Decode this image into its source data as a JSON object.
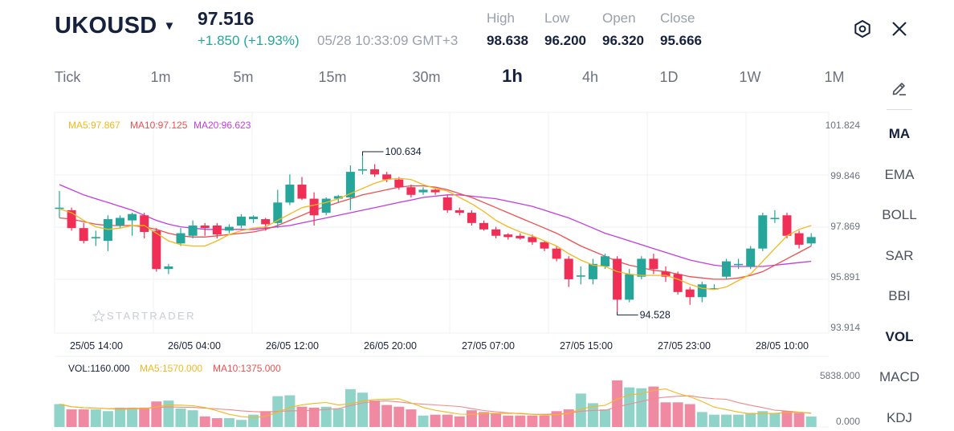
{
  "header": {
    "symbol": "UKOUSD",
    "price": "97.516",
    "change": "+1.850 (+1.93%)",
    "timestamp": "05/28 10:33:09 GMT+3",
    "stats": [
      {
        "label": "High",
        "value": "98.638"
      },
      {
        "label": "Low",
        "value": "96.200"
      },
      {
        "label": "Open",
        "value": "96.320"
      },
      {
        "label": "Close",
        "value": "95.666"
      }
    ],
    "icons": {
      "settings": "gear-icon",
      "close": "close-icon",
      "dropdown": "caret-down-icon"
    }
  },
  "timeframes": [
    "Tick",
    "1m",
    "5m",
    "15m",
    "30m",
    "1h",
    "4h",
    "1D",
    "1W",
    "1M"
  ],
  "active_timeframe": "1h",
  "indicators": [
    "MA",
    "EMA",
    "BOLL",
    "SAR",
    "BBI",
    "VOL",
    "MACD",
    "KDJ"
  ],
  "active_indicators": [
    "MA",
    "VOL"
  ],
  "watermark": "STARTRADER",
  "colors": {
    "up": "#26a69a",
    "down": "#ef2f55",
    "ma5": "#f3b81d",
    "ma10": "#ef4f4f",
    "ma20": "#c33ce0",
    "vol_up": "#8fd3c9",
    "vol_down": "#f08aa3"
  },
  "chart_data": {
    "type": "candlestick",
    "price_axis": {
      "labels": [
        "101.824",
        "99.846",
        "97.869",
        "95.891",
        "93.914"
      ],
      "range": [
        93.914,
        101.824
      ]
    },
    "time_labels": [
      "25/05 14:00",
      "26/05 04:00",
      "26/05 12:00",
      "26/05 20:00",
      "27/05 07:00",
      "27/05 15:00",
      "27/05 23:00",
      "28/05 10:00"
    ],
    "legend": {
      "ma5": "MA5:97.867",
      "ma10": "MA10:97.125",
      "ma20": "MA20:96.623"
    },
    "annotations": {
      "high": "100.634",
      "low": "94.528"
    },
    "candles": [
      {
        "o": 98.6,
        "c": 98.6,
        "h": 99.25,
        "l": 98.2
      },
      {
        "o": 98.5,
        "c": 97.8,
        "h": 98.6,
        "l": 97.7
      },
      {
        "o": 97.8,
        "c": 97.3,
        "h": 98.0,
        "l": 97.2
      },
      {
        "o": 97.45,
        "c": 97.45,
        "h": 97.7,
        "l": 97.1
      },
      {
        "o": 97.3,
        "c": 98.15,
        "h": 98.3,
        "l": 96.9
      },
      {
        "o": 97.9,
        "c": 98.2,
        "h": 98.3,
        "l": 97.8
      },
      {
        "o": 98.1,
        "c": 98.35,
        "h": 98.4,
        "l": 97.5
      },
      {
        "o": 98.3,
        "c": 97.65,
        "h": 98.4,
        "l": 97.4
      },
      {
        "o": 97.7,
        "c": 96.2,
        "h": 97.8,
        "l": 96.1
      },
      {
        "o": 96.2,
        "c": 96.3,
        "h": 96.4,
        "l": 96.0
      },
      {
        "o": 97.2,
        "c": 97.6,
        "h": 97.8,
        "l": 97.1
      },
      {
        "o": 97.5,
        "c": 97.9,
        "h": 98.1,
        "l": 97.4
      },
      {
        "o": 97.9,
        "c": 97.8,
        "h": 98.0,
        "l": 97.5
      },
      {
        "o": 97.9,
        "c": 97.55,
        "h": 98.0,
        "l": 97.4
      },
      {
        "o": 97.7,
        "c": 97.85,
        "h": 97.95,
        "l": 97.6
      },
      {
        "o": 97.9,
        "c": 98.25,
        "h": 98.35,
        "l": 97.8
      },
      {
        "o": 98.15,
        "c": 98.25,
        "h": 98.3,
        "l": 98.0
      },
      {
        "o": 98.15,
        "c": 97.95,
        "h": 98.2,
        "l": 97.7
      },
      {
        "o": 98.0,
        "c": 98.8,
        "h": 99.3,
        "l": 97.8
      },
      {
        "o": 98.8,
        "c": 99.5,
        "h": 99.9,
        "l": 98.7
      },
      {
        "o": 99.5,
        "c": 98.95,
        "h": 99.8,
        "l": 98.9
      },
      {
        "o": 98.95,
        "c": 98.3,
        "h": 99.2,
        "l": 97.9
      },
      {
        "o": 98.4,
        "c": 98.95,
        "h": 99.0,
        "l": 98.3
      },
      {
        "o": 98.95,
        "c": 99.05,
        "h": 99.1,
        "l": 98.8
      },
      {
        "o": 99.0,
        "c": 100.0,
        "h": 100.25,
        "l": 98.5
      },
      {
        "o": 100.05,
        "c": 100.1,
        "h": 100.63,
        "l": 99.9
      },
      {
        "o": 100.1,
        "c": 99.9,
        "h": 100.3,
        "l": 99.8
      },
      {
        "o": 99.9,
        "c": 99.7,
        "h": 100.0,
        "l": 99.6
      },
      {
        "o": 99.7,
        "c": 99.4,
        "h": 99.8,
        "l": 99.3
      },
      {
        "o": 99.4,
        "c": 99.1,
        "h": 99.5,
        "l": 99.0
      },
      {
        "o": 99.2,
        "c": 99.3,
        "h": 99.4,
        "l": 99.1
      },
      {
        "o": 99.3,
        "c": 99.2,
        "h": 99.35,
        "l": 99.1
      },
      {
        "o": 99.0,
        "c": 98.5,
        "h": 99.1,
        "l": 98.4
      },
      {
        "o": 98.5,
        "c": 98.4,
        "h": 98.6,
        "l": 98.3
      },
      {
        "o": 98.4,
        "c": 98.0,
        "h": 98.5,
        "l": 97.9
      },
      {
        "o": 98.0,
        "c": 97.75,
        "h": 98.1,
        "l": 97.7
      },
      {
        "o": 97.75,
        "c": 97.5,
        "h": 97.85,
        "l": 97.4
      },
      {
        "o": 97.55,
        "c": 97.45,
        "h": 97.6,
        "l": 97.35
      },
      {
        "o": 97.5,
        "c": 97.4,
        "h": 97.6,
        "l": 97.35
      },
      {
        "o": 97.45,
        "c": 97.25,
        "h": 97.55,
        "l": 97.15
      },
      {
        "o": 97.25,
        "c": 97.0,
        "h": 97.3,
        "l": 96.9
      },
      {
        "o": 97.0,
        "c": 96.6,
        "h": 97.1,
        "l": 96.5
      },
      {
        "o": 96.6,
        "c": 95.8,
        "h": 96.7,
        "l": 95.5
      },
      {
        "o": 95.95,
        "c": 95.95,
        "h": 96.3,
        "l": 95.6
      },
      {
        "o": 95.8,
        "c": 96.4,
        "h": 96.6,
        "l": 95.6
      },
      {
        "o": 96.3,
        "c": 96.7,
        "h": 96.8,
        "l": 96.2
      },
      {
        "o": 96.6,
        "c": 95.0,
        "h": 96.7,
        "l": 94.53
      },
      {
        "o": 95.0,
        "c": 96.0,
        "h": 96.2,
        "l": 94.9
      },
      {
        "o": 95.9,
        "c": 96.6,
        "h": 96.7,
        "l": 95.8
      },
      {
        "o": 96.6,
        "c": 96.2,
        "h": 96.8,
        "l": 96.0
      },
      {
        "o": 96.1,
        "c": 95.9,
        "h": 96.3,
        "l": 95.7
      },
      {
        "o": 96.0,
        "c": 95.3,
        "h": 96.1,
        "l": 95.2
      },
      {
        "o": 95.4,
        "c": 95.1,
        "h": 95.5,
        "l": 94.8
      },
      {
        "o": 95.1,
        "c": 95.6,
        "h": 95.7,
        "l": 94.9
      },
      {
        "o": 95.45,
        "c": 95.45,
        "h": 95.6,
        "l": 95.4
      },
      {
        "o": 95.9,
        "c": 96.5,
        "h": 96.6,
        "l": 95.8
      },
      {
        "o": 96.4,
        "c": 96.4,
        "h": 96.6,
        "l": 96.2
      },
      {
        "o": 96.3,
        "c": 97.0,
        "h": 97.1,
        "l": 96.2
      },
      {
        "o": 97.0,
        "c": 98.3,
        "h": 98.4,
        "l": 96.9
      },
      {
        "o": 98.2,
        "c": 98.2,
        "h": 98.5,
        "l": 98.0
      },
      {
        "o": 98.3,
        "c": 97.5,
        "h": 98.4,
        "l": 97.4
      },
      {
        "o": 97.6,
        "c": 97.15,
        "h": 97.7,
        "l": 97.0
      },
      {
        "o": 97.2,
        "c": 97.45,
        "h": 97.6,
        "l": 97.1
      }
    ],
    "ma5": [
      98.55,
      98.4,
      98.1,
      97.85,
      97.75,
      97.8,
      97.9,
      97.9,
      97.6,
      97.3,
      97.15,
      97.1,
      97.1,
      97.3,
      97.55,
      97.7,
      97.8,
      97.85,
      98.1,
      98.35,
      98.6,
      98.7,
      98.8,
      98.95,
      99.15,
      99.35,
      99.55,
      99.7,
      99.75,
      99.7,
      99.5,
      99.35,
      99.25,
      99.0,
      98.75,
      98.45,
      98.1,
      97.85,
      97.65,
      97.5,
      97.3,
      97.1,
      96.8,
      96.55,
      96.35,
      96.3,
      96.1,
      96.0,
      95.95,
      95.95,
      95.95,
      95.8,
      95.6,
      95.45,
      95.4,
      95.5,
      95.75,
      96.0,
      96.5,
      97.0,
      97.5,
      97.75,
      97.9
    ],
    "ma10": [
      98.2,
      98.15,
      98.05,
      97.95,
      97.9,
      97.9,
      97.9,
      97.85,
      97.75,
      97.6,
      97.5,
      97.45,
      97.45,
      97.5,
      97.55,
      97.6,
      97.65,
      97.75,
      97.9,
      98.1,
      98.3,
      98.5,
      98.65,
      98.8,
      98.95,
      99.1,
      99.2,
      99.3,
      99.4,
      99.45,
      99.45,
      99.4,
      99.3,
      99.15,
      99.0,
      98.8,
      98.6,
      98.4,
      98.2,
      98.0,
      97.8,
      97.6,
      97.35,
      97.1,
      96.9,
      96.7,
      96.5,
      96.35,
      96.25,
      96.15,
      96.1,
      96.0,
      95.9,
      95.85,
      95.8,
      95.8,
      95.85,
      95.95,
      96.1,
      96.35,
      96.6,
      96.85,
      97.1
    ],
    "ma20": [
      99.5,
      99.3,
      99.1,
      98.95,
      98.8,
      98.65,
      98.5,
      98.3,
      98.1,
      97.95,
      97.85,
      97.8,
      97.75,
      97.75,
      97.75,
      97.75,
      97.75,
      97.8,
      97.85,
      97.9,
      98.0,
      98.1,
      98.2,
      98.3,
      98.4,
      98.5,
      98.6,
      98.7,
      98.8,
      98.9,
      99.0,
      99.05,
      99.1,
      99.1,
      99.05,
      99.0,
      98.95,
      98.85,
      98.75,
      98.65,
      98.5,
      98.35,
      98.2,
      98.0,
      97.8,
      97.6,
      97.45,
      97.3,
      97.15,
      97.0,
      96.85,
      96.7,
      96.55,
      96.45,
      96.35,
      96.3,
      96.3,
      96.3,
      96.3,
      96.35,
      96.4,
      96.45,
      96.5
    ],
    "volume": {
      "legend": {
        "vol": "VOL:1160.000",
        "ma5": "MA5:1570.000",
        "ma10": "MA10:1375.000"
      },
      "axis_labels": [
        "5838.000",
        "0.000"
      ],
      "range": [
        0,
        5838
      ],
      "values": [
        2600,
        2000,
        2000,
        2000,
        1800,
        2200,
        2200,
        2200,
        2900,
        3000,
        2100,
        1900,
        1200,
        1000,
        1000,
        800,
        1400,
        1800,
        3500,
        3600,
        2300,
        2200,
        2300,
        2100,
        4300,
        3900,
        3000,
        2500,
        2300,
        2000,
        1300,
        1400,
        1400,
        1200,
        1900,
        1700,
        1600,
        1300,
        1300,
        1300,
        1300,
        1800,
        2000,
        3800,
        2700,
        2000,
        5300,
        4500,
        4400,
        4600,
        2800,
        2800,
        2600,
        1700,
        1400,
        1400,
        1400,
        1600,
        1800,
        1600,
        1800,
        1600,
        1200
      ]
    }
  }
}
